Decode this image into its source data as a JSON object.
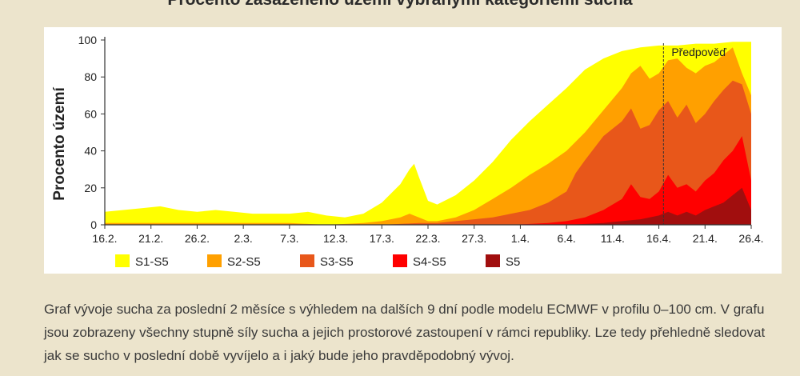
{
  "title": "Procento zasaženého území vybranými kategoriemi sucha",
  "caption": "Graf vývoje sucha za poslední 2 měsíce s výhledem na dalších 9 dní podle modelu ECMWF v profilu 0–100 cm. V grafu jsou zobrazeny všechny stupně síly sucha a jejich prostorové zastoupení v rámci republiky. Lze tedy přehledně sledovat jak se sucho v poslední době vyvíjelo a i jaký bude jeho pravděpodobný vývoj.",
  "chart_data": {
    "type": "area",
    "title": "Procento zasaženého území vybranými kategoriemi sucha",
    "ylabel": "Procento území",
    "xlabel": "",
    "ylim": [
      0,
      100
    ],
    "yticks": [
      0,
      20,
      40,
      60,
      80,
      100
    ],
    "xlim": [
      0,
      70
    ],
    "xticks": [
      {
        "x": 0,
        "label": "16.2."
      },
      {
        "x": 5,
        "label": "21.2."
      },
      {
        "x": 10,
        "label": "26.2."
      },
      {
        "x": 15,
        "label": "2.3."
      },
      {
        "x": 20,
        "label": "7.3."
      },
      {
        "x": 25,
        "label": "12.3."
      },
      {
        "x": 30,
        "label": "17.3."
      },
      {
        "x": 35,
        "label": "22.3."
      },
      {
        "x": 40,
        "label": "27.3."
      },
      {
        "x": 45,
        "label": "1.4."
      },
      {
        "x": 50,
        "label": "6.4."
      },
      {
        "x": 55,
        "label": "11.4."
      },
      {
        "x": 60,
        "label": "16.4."
      },
      {
        "x": 65,
        "label": "21.4."
      },
      {
        "x": 70,
        "label": "26.4."
      }
    ],
    "forecast": {
      "x": 60.5,
      "label": "Předpověď"
    },
    "series": [
      {
        "name": "S1-S5",
        "color": "#ffff00",
        "points": [
          [
            0,
            7
          ],
          [
            2,
            8
          ],
          [
            4,
            9
          ],
          [
            6,
            10
          ],
          [
            8,
            8
          ],
          [
            10,
            7
          ],
          [
            12,
            8
          ],
          [
            14,
            7
          ],
          [
            16,
            6
          ],
          [
            18,
            6
          ],
          [
            20,
            6
          ],
          [
            22,
            7
          ],
          [
            24,
            5
          ],
          [
            26,
            4
          ],
          [
            28,
            6
          ],
          [
            30,
            12
          ],
          [
            32,
            22
          ],
          [
            33,
            30
          ],
          [
            33.5,
            33
          ],
          [
            34,
            26
          ],
          [
            35,
            13
          ],
          [
            36,
            11
          ],
          [
            38,
            16
          ],
          [
            40,
            24
          ],
          [
            42,
            34
          ],
          [
            44,
            46
          ],
          [
            46,
            56
          ],
          [
            48,
            65
          ],
          [
            50,
            74
          ],
          [
            52,
            84
          ],
          [
            54,
            90
          ],
          [
            56,
            94
          ],
          [
            58,
            96
          ],
          [
            60,
            97
          ],
          [
            62,
            97
          ],
          [
            64,
            98
          ],
          [
            66,
            98
          ],
          [
            68,
            99
          ],
          [
            70,
            99
          ]
        ]
      },
      {
        "name": "S2-S5",
        "color": "#ffa000",
        "points": [
          [
            0,
            1
          ],
          [
            4,
            1
          ],
          [
            8,
            1
          ],
          [
            12,
            1
          ],
          [
            16,
            1
          ],
          [
            20,
            1
          ],
          [
            24,
            0
          ],
          [
            28,
            1
          ],
          [
            30,
            2
          ],
          [
            32,
            4
          ],
          [
            33,
            6
          ],
          [
            34,
            4
          ],
          [
            35,
            2
          ],
          [
            36,
            2
          ],
          [
            38,
            4
          ],
          [
            40,
            8
          ],
          [
            42,
            14
          ],
          [
            44,
            20
          ],
          [
            46,
            27
          ],
          [
            48,
            33
          ],
          [
            50,
            40
          ],
          [
            52,
            50
          ],
          [
            54,
            62
          ],
          [
            56,
            74
          ],
          [
            57,
            82
          ],
          [
            58,
            86
          ],
          [
            59,
            79
          ],
          [
            60,
            82
          ],
          [
            61,
            89
          ],
          [
            62,
            90
          ],
          [
            63,
            85
          ],
          [
            64,
            82
          ],
          [
            65,
            86
          ],
          [
            66,
            88
          ],
          [
            67,
            92
          ],
          [
            68,
            96
          ],
          [
            69,
            82
          ],
          [
            70,
            70
          ]
        ]
      },
      {
        "name": "S3-S5",
        "color": "#e8571a",
        "points": [
          [
            0,
            0
          ],
          [
            30,
            0
          ],
          [
            34,
            1
          ],
          [
            36,
            1
          ],
          [
            38,
            2
          ],
          [
            40,
            3
          ],
          [
            42,
            4
          ],
          [
            44,
            6
          ],
          [
            46,
            8
          ],
          [
            48,
            12
          ],
          [
            50,
            18
          ],
          [
            51,
            28
          ],
          [
            52,
            35
          ],
          [
            54,
            48
          ],
          [
            56,
            56
          ],
          [
            57,
            63
          ],
          [
            58,
            52
          ],
          [
            59,
            54
          ],
          [
            60,
            62
          ],
          [
            61,
            67
          ],
          [
            62,
            58
          ],
          [
            63,
            65
          ],
          [
            64,
            55
          ],
          [
            65,
            60
          ],
          [
            66,
            67
          ],
          [
            67,
            73
          ],
          [
            68,
            78
          ],
          [
            69,
            76
          ],
          [
            70,
            60
          ]
        ]
      },
      {
        "name": "S4-S5",
        "color": "#ff0000",
        "points": [
          [
            0,
            0
          ],
          [
            40,
            0
          ],
          [
            44,
            0
          ],
          [
            48,
            1
          ],
          [
            50,
            2
          ],
          [
            52,
            4
          ],
          [
            54,
            8
          ],
          [
            56,
            14
          ],
          [
            57,
            22
          ],
          [
            58,
            15
          ],
          [
            59,
            14
          ],
          [
            60,
            18
          ],
          [
            61,
            27
          ],
          [
            62,
            20
          ],
          [
            63,
            22
          ],
          [
            64,
            18
          ],
          [
            65,
            24
          ],
          [
            66,
            28
          ],
          [
            67,
            35
          ],
          [
            68,
            40
          ],
          [
            69,
            48
          ],
          [
            70,
            24
          ]
        ]
      },
      {
        "name": "S5",
        "color": "#a10e0e",
        "points": [
          [
            0,
            0
          ],
          [
            50,
            0
          ],
          [
            54,
            1
          ],
          [
            56,
            2
          ],
          [
            58,
            3
          ],
          [
            60,
            5
          ],
          [
            61,
            7
          ],
          [
            62,
            5
          ],
          [
            63,
            7
          ],
          [
            64,
            5
          ],
          [
            65,
            8
          ],
          [
            66,
            10
          ],
          [
            67,
            12
          ],
          [
            68,
            16
          ],
          [
            69,
            20
          ],
          [
            70,
            8
          ]
        ]
      }
    ],
    "legend": {
      "placement": "bottom"
    },
    "grid": false
  }
}
